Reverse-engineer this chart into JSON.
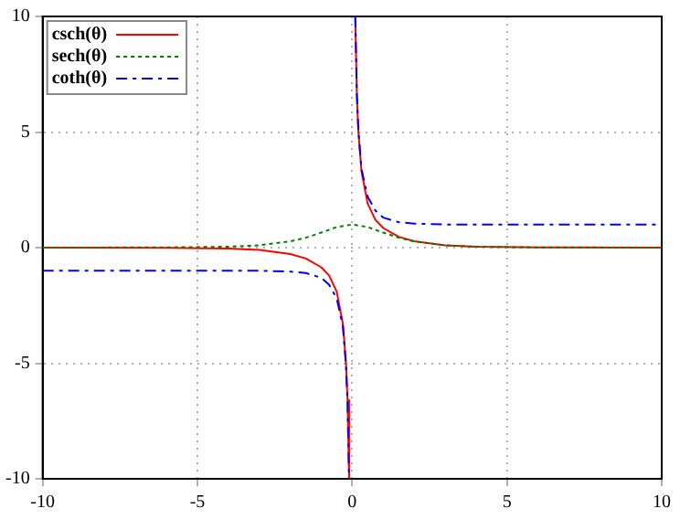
{
  "chart_data": {
    "type": "line",
    "xlim": [
      -10,
      10
    ],
    "ylim": [
      -10,
      10
    ],
    "xticks": [
      -10,
      -5,
      0,
      5,
      10
    ],
    "yticks": [
      -10,
      -5,
      0,
      5,
      10
    ],
    "grid": true,
    "legend": "top left",
    "marker": "none",
    "series": [
      {
        "name": "csch(θ)",
        "color": "#ff0000",
        "line_style": "solid",
        "x": [
          -10,
          -6,
          -4,
          -3,
          -2,
          -1.5,
          -1,
          -0.75,
          -0.5,
          -0.3,
          -0.2,
          -0.15,
          -0.1,
          0,
          0.1,
          0.15,
          0.2,
          0.3,
          0.5,
          0.75,
          1,
          1.5,
          2,
          3,
          4,
          6,
          10
        ],
        "values": [
          0,
          -0.01,
          -0.04,
          -0.1,
          -0.28,
          -0.47,
          -0.85,
          -1.2,
          -1.9,
          -3.3,
          -5,
          -6.6,
          -10,
          null,
          10,
          6.6,
          5,
          3.3,
          1.9,
          1.2,
          0.85,
          0.47,
          0.28,
          0.1,
          0.04,
          0.01,
          0
        ]
      },
      {
        "name": "sech(θ)",
        "color": "#008000",
        "line_style": "dotted",
        "x": [
          -10,
          -6,
          -4,
          -3,
          -2,
          -1.5,
          -1,
          -0.5,
          0,
          0.5,
          1,
          1.5,
          2,
          3,
          4,
          6,
          10
        ],
        "values": [
          0,
          0.01,
          0.04,
          0.1,
          0.27,
          0.43,
          0.65,
          0.89,
          1,
          0.89,
          0.65,
          0.43,
          0.27,
          0.1,
          0.04,
          0.01,
          0
        ]
      },
      {
        "name": "coth(θ)",
        "color": "#0000ff",
        "line_style": "dashed",
        "x": [
          -10,
          -4,
          -3,
          -2,
          -1.5,
          -1,
          -0.75,
          -0.5,
          -0.3,
          -0.2,
          -0.15,
          -0.1,
          0,
          0.1,
          0.15,
          0.2,
          0.3,
          0.5,
          0.75,
          1,
          1.5,
          2,
          3,
          4,
          10
        ],
        "values": [
          -1,
          -1,
          -1,
          -1.04,
          -1.1,
          -1.3,
          -1.6,
          -2.2,
          -3.4,
          -5.1,
          -6.7,
          -10,
          null,
          10,
          6.7,
          5.1,
          3.4,
          2.2,
          1.6,
          1.3,
          1.1,
          1.04,
          1,
          1,
          1
        ]
      }
    ]
  }
}
